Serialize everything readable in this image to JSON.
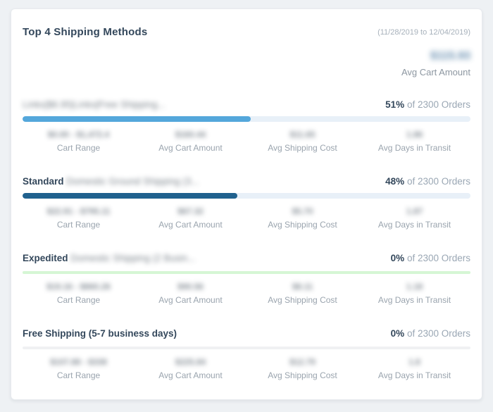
{
  "header": {
    "title": "Top 4 Shipping Methods",
    "date_range": "(11/28/2019 to 12/04/2019)",
    "summary_value": "$115.93",
    "summary_value_blurred": true,
    "summary_label": "Avg Cart Amount"
  },
  "chart_data": {
    "type": "bar",
    "title": "Top 4 Shipping Methods",
    "subtitle": "(11/28/2019 to 12/04/2019)",
    "categories": [
      "Links|$6.95|Links|Free Shipping... (blurred)",
      "Standard Domestic Ground Shipping (3... (partially blurred)",
      "Expedited Domestic Shipping (2 Busin... (partially blurred)",
      "Free Shipping (5-7 business days)"
    ],
    "values": [
      51,
      48,
      0,
      0
    ],
    "value_unit": "% of 2300 Orders",
    "total_orders": 2300,
    "bar_colors": [
      "#54a7db",
      "#20618e",
      "#7ed957",
      "#c5c9cf"
    ],
    "grid": false,
    "legend": false
  },
  "rows": [
    {
      "name_prefix": "",
      "name_blurred": "Links|$6.95|Links|Free Shipping...",
      "percent": "51%",
      "of_label": " of 2300 Orders",
      "bar": {
        "fill_percent": 51,
        "fill_color": "#54a7db",
        "track_color": "#e8f0f8"
      },
      "stats": [
        {
          "value": "$0.00 - $1,472.4",
          "label": "Cart Range",
          "blurred": true
        },
        {
          "value": "$160.44",
          "label": "Avg Cart Amount",
          "blurred": true
        },
        {
          "value": "$11.65",
          "label": "Avg Shipping Cost",
          "blurred": true
        },
        {
          "value": "1.86",
          "label": "Avg Days in Transit",
          "blurred": true
        }
      ]
    },
    {
      "name_prefix": "Standard ",
      "name_blurred": "Domestic Ground Shipping (3...",
      "percent": "48%",
      "of_label": " of 2300 Orders",
      "bar": {
        "fill_percent": 48,
        "fill_color": "#20618e",
        "track_color": "#e8f0f8"
      },
      "stats": [
        {
          "value": "$22.91 - $795.11",
          "label": "Cart Range",
          "blurred": true
        },
        {
          "value": "$67.32",
          "label": "Avg Cart Amount",
          "blurred": true
        },
        {
          "value": "$5.70",
          "label": "Avg Shipping Cost",
          "blurred": true
        },
        {
          "value": "1.87",
          "label": "Avg Days in Transit",
          "blurred": true
        }
      ]
    },
    {
      "name_prefix": "Expedited ",
      "name_blurred": "Domestic Shipping (2 Busin...",
      "percent": "0%",
      "of_label": " of 2300 Orders",
      "bar": {
        "fill_percent": 0,
        "fill_color": "#7ed957",
        "track_color": "#d5f6d4"
      },
      "stats": [
        {
          "value": "$19.16 - $860.26",
          "label": "Cart Range",
          "blurred": true
        },
        {
          "value": "$90.56",
          "label": "Avg Cart Amount",
          "blurred": true
        },
        {
          "value": "$8.11",
          "label": "Avg Shipping Cost",
          "blurred": true
        },
        {
          "value": "1.18",
          "label": "Avg Days in Transit",
          "blurred": true
        }
      ]
    },
    {
      "name_prefix": "Free Shipping (5-7 business days)",
      "name_blurred": "",
      "percent": "0%",
      "of_label": " of 2300 Orders",
      "bar": {
        "fill_percent": 0,
        "fill_color": "#c5c9cf",
        "track_color": "#f0f1f3"
      },
      "stats": [
        {
          "value": "$107.88 - $338",
          "label": "Cart Range",
          "blurred": true
        },
        {
          "value": "$225.84",
          "label": "Avg Cart Amount",
          "blurred": true
        },
        {
          "value": "$12.79",
          "label": "Avg Shipping Cost",
          "blurred": true
        },
        {
          "value": "1.8",
          "label": "Avg Days in Transit",
          "blurred": true
        }
      ]
    }
  ]
}
